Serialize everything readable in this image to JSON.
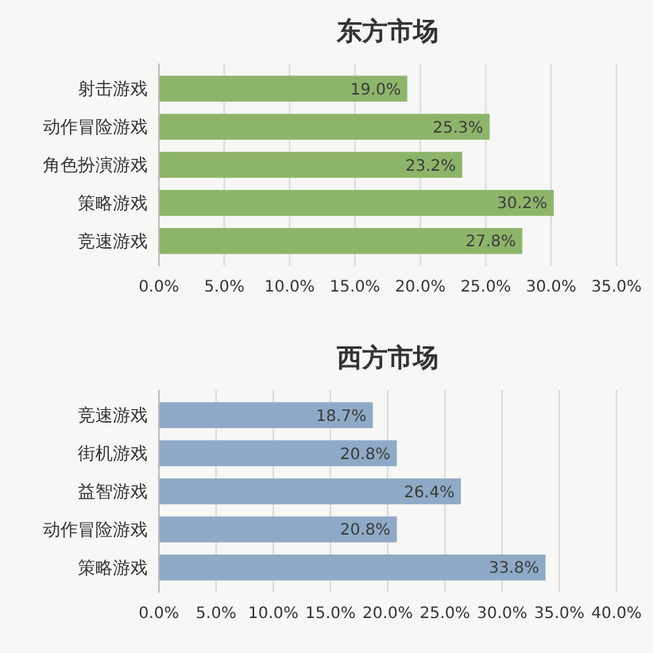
{
  "chart_data": [
    {
      "type": "bar",
      "orientation": "horizontal",
      "title": "东方市场",
      "categories": [
        "射击游戏",
        "动作冒险游戏",
        "角色扮演游戏",
        "策略游戏",
        "竞速游戏"
      ],
      "values": [
        19.0,
        25.3,
        23.2,
        30.2,
        27.8
      ],
      "value_labels": [
        "19.0%",
        "25.3%",
        "23.2%",
        "30.2%",
        "27.8%"
      ],
      "color": "#8db56a",
      "xlim": [
        0,
        35
      ],
      "xticks": [
        {
          "value": 0,
          "label": "0.0%"
        },
        {
          "value": 5,
          "label": "5.0%"
        },
        {
          "value": 10,
          "label": "10.0%"
        },
        {
          "value": 15,
          "label": "15.0%"
        },
        {
          "value": 20,
          "label": "20.0%"
        },
        {
          "value": 25,
          "label": "25.0%"
        },
        {
          "value": 30,
          "label": "30.0%"
        },
        {
          "value": 35,
          "label": "35.0%"
        }
      ],
      "grid": "x"
    },
    {
      "type": "bar",
      "orientation": "horizontal",
      "title": "西方市场",
      "categories": [
        "竞速游戏",
        "街机游戏",
        "益智游戏",
        "动作冒险游戏",
        "策略游戏"
      ],
      "values": [
        18.7,
        20.8,
        26.4,
        20.8,
        33.8
      ],
      "value_labels": [
        "18.7%",
        "20.8%",
        "26.4%",
        "20.8%",
        "33.8%"
      ],
      "color": "#8eaac6",
      "xlim": [
        0,
        40
      ],
      "xticks": [
        {
          "value": 0,
          "label": "0.0%"
        },
        {
          "value": 5,
          "label": "5.0%"
        },
        {
          "value": 10,
          "label": "10.0%"
        },
        {
          "value": 15,
          "label": "15.0%"
        },
        {
          "value": 20,
          "label": "20.0%"
        },
        {
          "value": 25,
          "label": "25.0%"
        },
        {
          "value": 30,
          "label": "30.0%"
        },
        {
          "value": 35,
          "label": "35.0%"
        },
        {
          "value": 40,
          "label": "40.0%"
        }
      ],
      "grid": "x"
    }
  ]
}
